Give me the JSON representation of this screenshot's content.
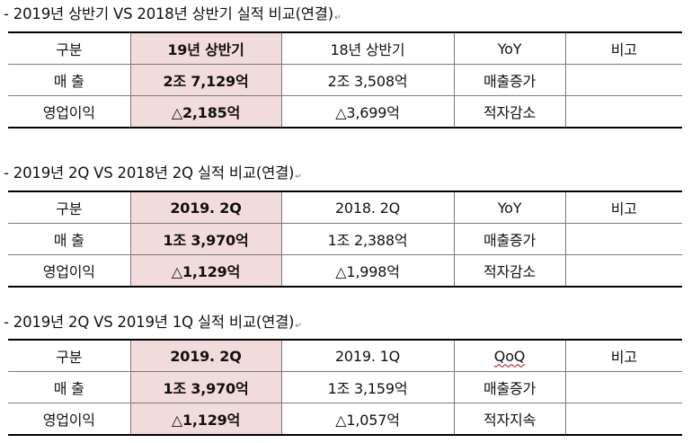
{
  "sections": [
    {
      "title": "- 2019년 상반기 VS 2018년 상반기 실적 비교(연결)",
      "rows": [
        [
          "구분",
          "19년 상반기",
          "18년 상반기",
          "YoY",
          "비고"
        ],
        [
          "매 출",
          "2조 7,129억",
          "2조 3,508억",
          "매출증가",
          ""
        ],
        [
          "영업이익",
          "△2,185억",
          "△3,699억",
          "적자감소",
          ""
        ]
      ]
    },
    {
      "title": "- 2019년 2Q VS 2018년 2Q 실적 비교(연결)",
      "rows": [
        [
          "구분",
          "2019. 2Q",
          "2018. 2Q",
          "YoY",
          "비고"
        ],
        [
          "매 출",
          "1조 3,970억",
          "1조 2,388억",
          "매출증가",
          ""
        ],
        [
          "영업이익",
          "△1,129억",
          "△1,998억",
          "적자감소",
          ""
        ]
      ]
    },
    {
      "title": "- 2019년 2Q VS 2019년 1Q 실적 비교(연결)",
      "rows": [
        [
          "구분",
          "2019. 2Q",
          "2019. 1Q",
          "QoQ",
          "비고"
        ],
        [
          "매 출",
          "1조 3,970억",
          "1조 3,159억",
          "매출증가",
          ""
        ],
        [
          "영업이익",
          "△1,129억",
          "△1,057억",
          "적자지속",
          ""
        ]
      ]
    }
  ],
  "paragraph_mark": "↵",
  "highlight_color": "#f2dcdb"
}
